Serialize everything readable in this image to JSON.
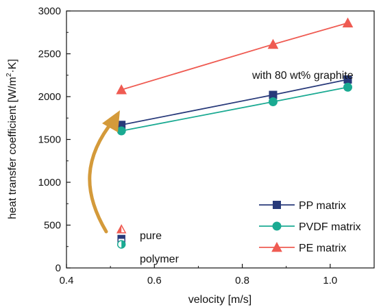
{
  "chart_data": {
    "type": "line",
    "xlabel": "velocity [m/s]",
    "ylabel_parts": [
      "heat transfer coefficient [W/m",
      "2",
      "·K]"
    ],
    "xlim": [
      0.4,
      1.1
    ],
    "ylim": [
      0,
      3000
    ],
    "x_ticks": [
      0.4,
      0.6,
      0.8,
      1.0
    ],
    "x_tick_labels": [
      "0.4",
      "0.6",
      "0.8",
      "1.0"
    ],
    "y_ticks": [
      0,
      500,
      1000,
      1500,
      2000,
      2500,
      3000
    ],
    "y_tick_labels": [
      "0",
      "500",
      "1000",
      "1500",
      "2000",
      "2500",
      "3000"
    ],
    "grid": false,
    "legend_position": "bottom-right",
    "series": [
      {
        "name": "PP matrix",
        "marker": "square",
        "color": "#283a7a",
        "x": [
          0.525,
          0.87,
          1.04
        ],
        "y": [
          1670,
          2020,
          2200
        ]
      },
      {
        "name": "PVDF matrix",
        "marker": "circle",
        "color": "#1aaa92",
        "x": [
          0.525,
          0.87,
          1.04
        ],
        "y": [
          1600,
          1940,
          2110
        ]
      },
      {
        "name": "PE matrix",
        "marker": "triangle",
        "color": "#ef5b52",
        "x": [
          0.525,
          0.87,
          1.04
        ],
        "y": [
          2080,
          2610,
          2860
        ]
      }
    ],
    "pure_polymer_points": [
      {
        "series": "PE matrix",
        "marker": "triangle",
        "x": 0.525,
        "y": 450
      },
      {
        "series": "PP matrix",
        "marker": "square",
        "x": 0.525,
        "y": 340
      },
      {
        "series": "PVDF matrix",
        "marker": "circle",
        "x": 0.525,
        "y": 275
      }
    ],
    "annotations": {
      "graphite": "with 80 wt% graphite",
      "pure_line1": "pure",
      "pure_line2": "polymer",
      "arrow_color": "#d49a3a"
    }
  }
}
